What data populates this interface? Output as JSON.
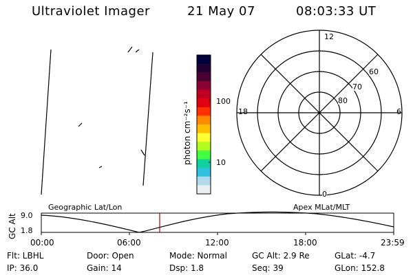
{
  "header": {
    "instrument": "Ultraviolet Imager",
    "date": "21 May 07",
    "time": "08:03:33 UT"
  },
  "colorbar": {
    "unit_label": "photon cm⁻²s⁻¹",
    "ticks": [
      "100",
      "10"
    ],
    "colors": [
      "#000040",
      "#220033",
      "#4a0033",
      "#8a0033",
      "#c00020",
      "#e00010",
      "#ff3000",
      "#ff8a00",
      "#ffc000",
      "#ffff33",
      "#b0ff20",
      "#40ff40",
      "#10d0a0",
      "#30c0e0",
      "#b0d8e8",
      "#e8f0f2"
    ]
  },
  "polar_plot": {
    "mlt_labels": [
      "12",
      "18",
      "6",
      "0"
    ],
    "lat_labels": [
      "60",
      "70",
      "80"
    ]
  },
  "timeline": {
    "left_title": "Geographic Lat/Lon",
    "right_title": "Apex MLat/MLT",
    "y_axis_label": "GC Alt",
    "y_ticks": [
      "9.0",
      "1.8"
    ],
    "x_ticks": [
      "00:00",
      "06:00",
      "12:00",
      "18:00",
      "23:59"
    ],
    "marker_color": "#b00000",
    "marker_time": "08:03:33"
  },
  "info": {
    "filter": "Flt: LBHL",
    "ip": "IP: 36.0",
    "door": "Door: Open",
    "gain": "Gain: 14",
    "mode": "Mode: Normal",
    "dsp": "Dsp:    1.8",
    "gc_alt": "GC Alt: 2.9 Re",
    "seq": "Seq: 39",
    "glat": "GLat:    -4.7",
    "glon": "GLon: 152.8"
  }
}
